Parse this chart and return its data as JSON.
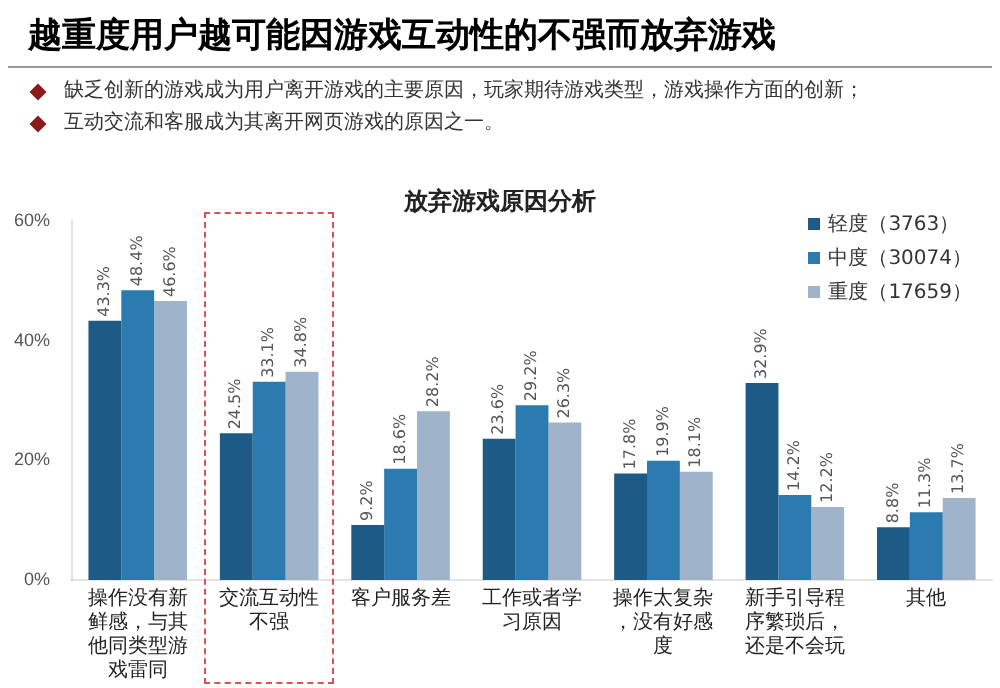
{
  "chart_data": {
    "type": "bar",
    "title": "越重度用户越可能因游戏互动性的不强而放弃游戏",
    "subtitle": "放弃游戏原因分析",
    "annotations": [
      "缺乏创新的游戏成为用户离开游戏的主要原因，玩家期待游戏类型，游戏操作方面的创新；",
      "互动交流和客服成为其离开网页游戏的原因之一。"
    ],
    "categories": [
      "操作没有新鲜感，与其他同类型游戏雷同",
      "交流互动性不强",
      "客户服务差",
      "工作或者学习原因",
      "操作太复杂，没有好感度",
      "新手引导程序繁琐后，还是不会玩",
      "其他"
    ],
    "series": [
      {
        "name": "轻度（3763）",
        "color": "#1d5a85",
        "values": [
          43.3,
          24.5,
          9.2,
          23.6,
          17.8,
          32.9,
          8.8
        ],
        "value_labels": [
          "43.3%",
          "24.5%",
          "9.2%",
          "23.6%",
          "17.8%",
          "32.9%",
          "8.8%"
        ]
      },
      {
        "name": "中度（30074）",
        "color": "#2b7bb0",
        "values": [
          48.4,
          33.1,
          18.6,
          29.2,
          19.9,
          14.2,
          11.3
        ],
        "value_labels": [
          "48.4%",
          "33.1%",
          "18.6%",
          "29.2%",
          "19.9%",
          "14.2%",
          "11.3%"
        ]
      },
      {
        "name": "重度（17659）",
        "color": "#9fb4cb",
        "values": [
          46.6,
          34.8,
          28.2,
          26.3,
          18.1,
          12.2,
          13.7
        ],
        "value_labels": [
          "46.6%",
          "34.8%",
          "28.2%",
          "26.3%",
          "18.1%",
          "12.2%",
          "13.7%"
        ]
      }
    ],
    "ylim": [
      0,
      60
    ],
    "yticks": [
      {
        "value": 0,
        "label": "0%"
      },
      {
        "value": 20,
        "label": "20%"
      },
      {
        "value": 40,
        "label": "40%"
      },
      {
        "value": 60,
        "label": "60%"
      }
    ],
    "grid": false,
    "legend": "top right"
  }
}
